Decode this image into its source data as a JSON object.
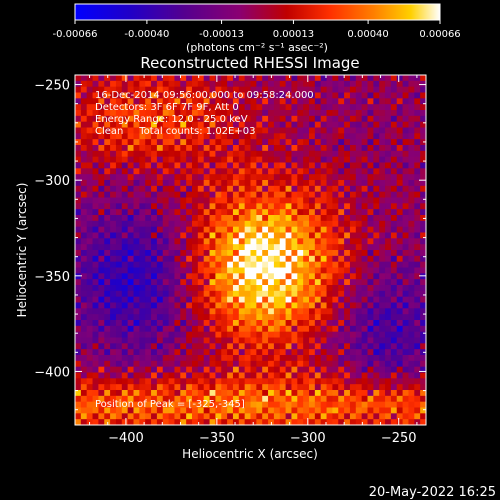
{
  "colorbar": {
    "ticks": [
      "-0.00066",
      "-0.00040",
      "-0.00013",
      "0.00013",
      "0.00040",
      "0.00066"
    ],
    "tick_values": [
      -0.00066,
      -0.0004,
      -0.00013,
      0.00013,
      0.0004,
      0.00066
    ],
    "units_label": "(photons cm⁻² s⁻¹ asec⁻²)",
    "colors": [
      "#0000ff",
      "#2200cc",
      "#5a0090",
      "#8a0070",
      "#c00000",
      "#ff3000",
      "#ff8000",
      "#ffd000",
      "#ffffff"
    ]
  },
  "chart_data": {
    "type": "heatmap",
    "title": "Reconstructed RHESSI Image",
    "xlabel": "Heliocentric X (arcsec)",
    "ylabel": "Heliocentric Y (arcsec)",
    "xlim": [
      -428,
      -235
    ],
    "ylim": [
      -428,
      -245
    ],
    "xticks": [
      -400,
      -350,
      -300,
      -250
    ],
    "yticks": [
      -400,
      -350,
      -300,
      -250
    ],
    "xtick_labels": [
      "−400",
      "−350",
      "−300",
      "−250"
    ],
    "ytick_labels": [
      "−400",
      "−350",
      "−300",
      "−250"
    ],
    "grid": false,
    "annotations": [
      "16-Dec-2014 09:56:00.000 to 09:58:24.000",
      "Detectors: 3F 6F 7F 9F, Att 0",
      "Energy Range: 12.0 - 25.0 keV",
      "Clean     Total counts: 1.02E+03"
    ],
    "peak_label": "Position of Peak = [-325,-345]",
    "peak": [
      -325,
      -345
    ]
  },
  "footer": {
    "timestamp": "20-May-2022 16:25"
  }
}
